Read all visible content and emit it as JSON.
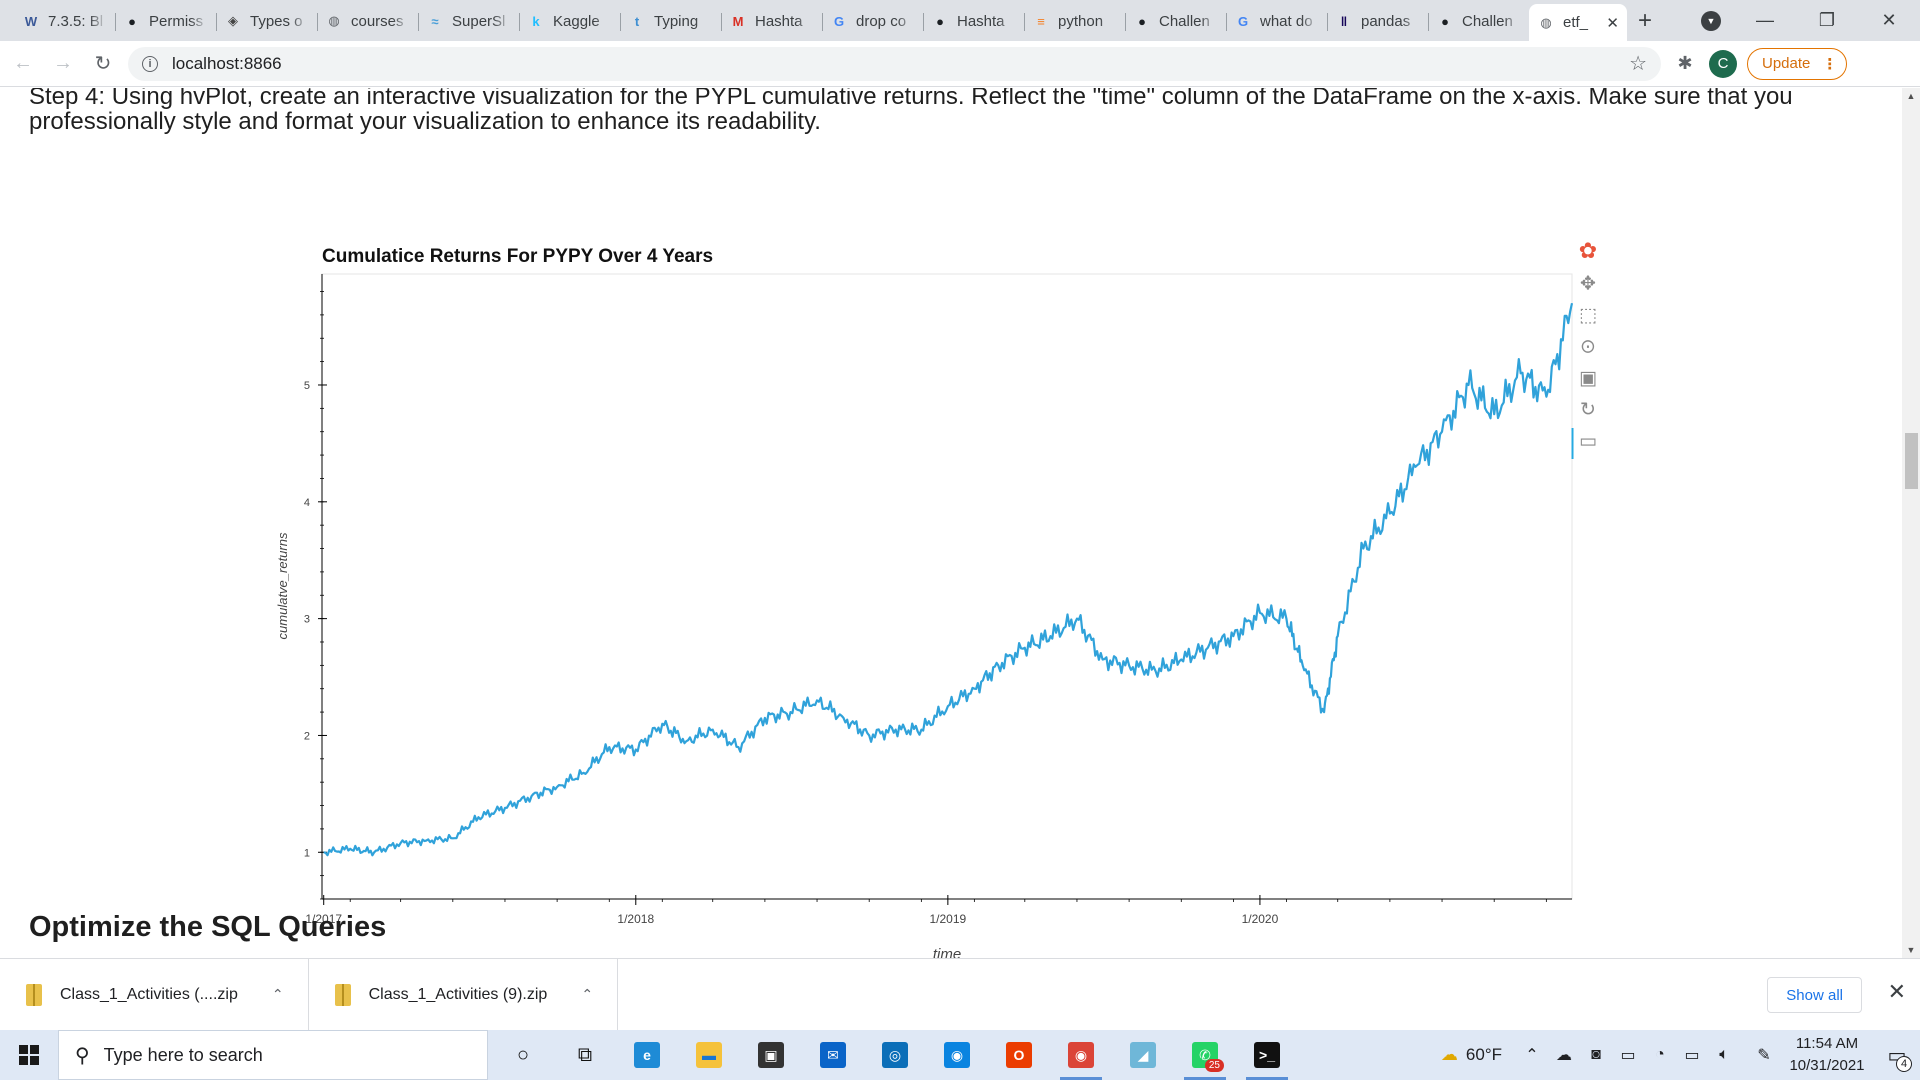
{
  "browser": {
    "tabs": [
      {
        "favicon": "w-icon",
        "glyph": "W",
        "color": "#3b5998",
        "title": "7.3.5: Bl"
      },
      {
        "favicon": "github-icon",
        "glyph": "●",
        "color": "#1b1f23",
        "title": "Permiss"
      },
      {
        "favicon": "diamond-icon",
        "glyph": "◈",
        "color": "#444",
        "title": "Types o"
      },
      {
        "favicon": "globe-icon",
        "glyph": "◍",
        "color": "#5f6368",
        "title": "courses"
      },
      {
        "favicon": "wave-icon",
        "glyph": "≈",
        "color": "#4a9fd8",
        "title": "SuperSl"
      },
      {
        "favicon": "kaggle-icon",
        "glyph": "k",
        "color": "#20beff",
        "title": "Kaggle"
      },
      {
        "favicon": "typing-icon",
        "glyph": "t",
        "color": "#3f8fd2",
        "title": "Typing"
      },
      {
        "favicon": "gmail-icon",
        "glyph": "M",
        "color": "#d93025",
        "title": "Hashta"
      },
      {
        "favicon": "google-icon",
        "glyph": "G",
        "color": "#4285f4",
        "title": "drop co"
      },
      {
        "favicon": "github-icon",
        "glyph": "●",
        "color": "#1b1f23",
        "title": "Hashta"
      },
      {
        "favicon": "stackoverflow-icon",
        "glyph": "≡",
        "color": "#f48024",
        "title": "python"
      },
      {
        "favicon": "github-icon",
        "glyph": "●",
        "color": "#1b1f23",
        "title": "Challen"
      },
      {
        "favicon": "google-icon",
        "glyph": "G",
        "color": "#4285f4",
        "title": "what do"
      },
      {
        "favicon": "pandas-icon",
        "glyph": "‖",
        "color": "#150458",
        "title": "pandas"
      },
      {
        "favicon": "github-icon",
        "glyph": "●",
        "color": "#1b1f23",
        "title": "Challen"
      },
      {
        "favicon": "globe-icon",
        "glyph": "◍",
        "color": "#5f6368",
        "title": "etf_",
        "active": true
      }
    ],
    "new_tab": "+",
    "url": "localhost:8866",
    "update_label": "Update",
    "avatar_letter": "C"
  },
  "notebook": {
    "step_text": "Step 4: Using hvPlot, create an interactive visualization for the PYPL cumulative returns. Reflect the \"time\" column of the DataFrame on the x-axis. Make sure that you professionally style and format your visualization to enhance its readability.",
    "next_heading": "Optimize the SQL Queries"
  },
  "chart_data": {
    "type": "line",
    "title": "Cumulatice Returns For PYPY Over 4 Years",
    "xlabel": "time",
    "ylabel": "cumulatve_returns",
    "x_ticks": [
      "1/2017",
      "1/2018",
      "1/2019",
      "1/2020"
    ],
    "y_ticks": [
      1,
      2,
      3,
      4,
      5
    ],
    "xlim": [
      "2016-12-30",
      "2020-12-31"
    ],
    "ylim": [
      0.6,
      5.95
    ],
    "grid": false,
    "series_color": "#30a2da",
    "x": [
      "2017-01-01",
      "2017-02-01",
      "2017-03-01",
      "2017-04-01",
      "2017-05-01",
      "2017-06-01",
      "2017-07-01",
      "2017-08-01",
      "2017-09-01",
      "2017-10-01",
      "2017-11-01",
      "2017-12-01",
      "2018-01-01",
      "2018-02-01",
      "2018-03-01",
      "2018-04-01",
      "2018-05-01",
      "2018-06-01",
      "2018-07-01",
      "2018-08-01",
      "2018-09-01",
      "2018-10-01",
      "2018-11-01",
      "2018-12-01",
      "2019-01-01",
      "2019-02-01",
      "2019-03-01",
      "2019-04-01",
      "2019-05-01",
      "2019-06-01",
      "2019-07-01",
      "2019-08-01",
      "2019-09-01",
      "2019-10-01",
      "2019-11-01",
      "2019-12-01",
      "2020-01-01",
      "2020-02-01",
      "2020-02-20",
      "2020-03-16",
      "2020-04-01",
      "2020-05-01",
      "2020-06-01",
      "2020-07-01",
      "2020-08-01",
      "2020-09-01",
      "2020-10-01",
      "2020-11-01",
      "2020-12-01",
      "2020-12-31"
    ],
    "y": [
      1.0,
      1.03,
      1.0,
      1.08,
      1.1,
      1.12,
      1.3,
      1.38,
      1.48,
      1.56,
      1.68,
      1.9,
      1.88,
      2.1,
      1.95,
      2.05,
      1.9,
      2.15,
      2.2,
      2.3,
      2.15,
      2.0,
      2.05,
      2.05,
      2.25,
      2.4,
      2.6,
      2.75,
      2.85,
      3.0,
      2.65,
      2.6,
      2.55,
      2.65,
      2.75,
      2.85,
      3.05,
      3.0,
      2.6,
      2.2,
      2.85,
      3.6,
      3.9,
      4.3,
      4.6,
      5.0,
      4.75,
      5.1,
      4.9,
      5.7
    ],
    "toolbar_icons": [
      "bokeh-logo-icon",
      "pan-icon",
      "box-zoom-icon",
      "wheel-zoom-icon",
      "save-icon",
      "reset-icon",
      "hover-icon"
    ]
  },
  "downloads": [
    {
      "name": "Class_1_Activities (....zip"
    },
    {
      "name": "Class_1_Activities (9).zip"
    }
  ],
  "show_all_label": "Show all",
  "taskbar": {
    "search_placeholder": "Type here to search",
    "apps": [
      {
        "name": "cortana-icon",
        "glyph": "○",
        "bg": "transparent",
        "fg": "#111",
        "running": false
      },
      {
        "name": "task-view-icon",
        "glyph": "⧉",
        "bg": "transparent",
        "fg": "#111",
        "running": false
      },
      {
        "name": "edge-icon",
        "glyph": "e",
        "bg": "#1e8bd6",
        "fg": "#fff",
        "running": false
      },
      {
        "name": "file-explorer-icon",
        "glyph": "▬",
        "bg": "#f5c23b",
        "fg": "#1976d2",
        "running": false
      },
      {
        "name": "store-icon",
        "glyph": "▣",
        "bg": "#333",
        "fg": "#fff",
        "running": false
      },
      {
        "name": "mail-icon",
        "glyph": "✉",
        "bg": "#0a64c8",
        "fg": "#fff",
        "running": false
      },
      {
        "name": "dell-icon",
        "glyph": "◎",
        "bg": "#0b6eb8",
        "fg": "#fff",
        "running": false
      },
      {
        "name": "photos-icon",
        "glyph": "◉",
        "bg": "#0a84e0",
        "fg": "#fff",
        "running": false
      },
      {
        "name": "office-icon",
        "glyph": "O",
        "bg": "#eb3c00",
        "fg": "#fff",
        "running": false
      },
      {
        "name": "chrome-icon",
        "glyph": "◉",
        "bg": "#db4437",
        "fg": "#fff",
        "running": true
      },
      {
        "name": "app-icon",
        "glyph": "◢",
        "bg": "#6fb7d8",
        "fg": "#fff",
        "running": false
      },
      {
        "name": "whatsapp-icon",
        "glyph": "✆",
        "bg": "#25d366",
        "fg": "#fff",
        "running": true,
        "badge": "25"
      },
      {
        "name": "terminal-icon",
        "glyph": ">_",
        "bg": "#111",
        "fg": "#fff",
        "running": true
      }
    ],
    "temperature": "60°F",
    "time": "11:54 AM",
    "date": "10/31/2021",
    "notifications": "4"
  }
}
